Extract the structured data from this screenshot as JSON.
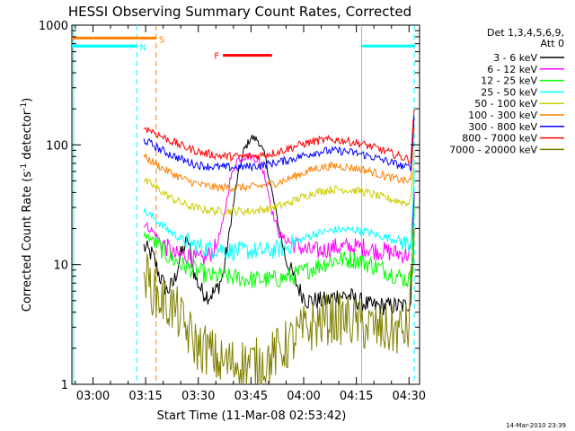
{
  "chart_data": {
    "type": "line",
    "title": "HESSI Observing Summary Count Rates, Corrected",
    "xlabel": "Start Time (11-Mar-08 02:53:42)",
    "ylabel_main": "Corrected Count Rate (s",
    "ylabel_sup1": "-1",
    "ylabel_mid": " detector",
    "ylabel_sup2": "-1",
    "ylabel_end": ")",
    "yscale": "log",
    "ylim": [
      1,
      1000
    ],
    "xlim_minutes": [
      174,
      273
    ],
    "x_ticks": [
      {
        "minute": 180,
        "label": "03:00"
      },
      {
        "minute": 195,
        "label": "03:15"
      },
      {
        "minute": 210,
        "label": "03:30"
      },
      {
        "minute": 225,
        "label": "03:45"
      },
      {
        "minute": 240,
        "label": "04:00"
      },
      {
        "minute": 255,
        "label": "04:15"
      },
      {
        "minute": 270,
        "label": "04:30"
      }
    ],
    "y_ticks": [
      {
        "value": 1,
        "label": "1"
      },
      {
        "value": 10,
        "label": "10"
      },
      {
        "value": 100,
        "label": "100"
      },
      {
        "value": 1000,
        "label": "1000"
      }
    ],
    "legend_header": [
      "Det 1,3,4,5,6,9,",
      "Att 0"
    ],
    "legend_position": "right",
    "series": [
      {
        "name": "3 - 6 keV",
        "color": "#000000",
        "x": [
          194.5,
          197,
          199,
          201,
          203,
          205,
          207,
          209,
          211,
          213,
          215,
          217,
          219,
          221,
          223,
          225,
          227,
          229,
          231,
          233,
          235,
          237,
          239,
          241,
          243,
          245,
          247,
          249,
          251,
          253,
          255,
          257,
          259,
          261,
          263,
          265,
          267,
          269,
          270.5,
          271.5
        ],
        "y": [
          14,
          12,
          8,
          6,
          7,
          12,
          16,
          8,
          6,
          5.5,
          6,
          8,
          20,
          50,
          90,
          115,
          110,
          80,
          40,
          20,
          11,
          8,
          6,
          5,
          5,
          5,
          5,
          5.5,
          5.5,
          5.5,
          5,
          4.8,
          4.5,
          4.5,
          4.5,
          4.5,
          4.5,
          4.5,
          5,
          40
        ]
      },
      {
        "name": "6 - 12 keV",
        "color": "#ff00ff",
        "x": [
          194.5,
          197,
          199,
          201,
          203,
          205,
          207,
          209,
          211,
          213,
          215,
          217,
          219,
          221,
          223,
          225,
          227,
          229,
          231,
          233,
          235,
          237,
          239,
          241,
          243,
          245,
          247,
          249,
          251,
          253,
          255,
          257,
          259,
          261,
          263,
          265,
          267,
          269,
          270.5,
          271.5
        ],
        "y": [
          22,
          19,
          16,
          14,
          12,
          12,
          12,
          11,
          11,
          12,
          14,
          22,
          50,
          75,
          80,
          80,
          75,
          55,
          28,
          18,
          16,
          15,
          14,
          13,
          13,
          13,
          13.5,
          14,
          14,
          14,
          14,
          14,
          13.5,
          13,
          13,
          12.5,
          12.5,
          12,
          12.5,
          40
        ]
      },
      {
        "name": "12 - 25 keV",
        "color": "#00ff00",
        "x": [
          194.5,
          197,
          199,
          201,
          203,
          205,
          207,
          209,
          211,
          213,
          215,
          217,
          219,
          221,
          223,
          225,
          227,
          229,
          231,
          233,
          235,
          237,
          239,
          241,
          243,
          245,
          247,
          249,
          251,
          253,
          255,
          257,
          259,
          261,
          263,
          265,
          267,
          269,
          270.5,
          271.5
        ],
        "y": [
          18,
          16,
          14,
          12,
          11,
          10,
          9.5,
          9,
          8.5,
          8,
          8,
          8,
          7.8,
          7.8,
          7.6,
          7.5,
          7.5,
          7.5,
          7.5,
          7.6,
          7.8,
          8,
          8.5,
          9,
          9.5,
          10,
          10.5,
          11,
          11,
          11,
          11,
          10.5,
          10,
          9.5,
          9,
          8.5,
          8,
          7.5,
          7.5,
          30
        ]
      },
      {
        "name": "25 - 50 keV",
        "color": "#00ffff",
        "x": [
          194.5,
          197,
          199,
          201,
          203,
          205,
          207,
          209,
          211,
          213,
          215,
          217,
          219,
          221,
          223,
          225,
          227,
          229,
          231,
          233,
          235,
          237,
          239,
          241,
          243,
          245,
          247,
          249,
          251,
          253,
          255,
          257,
          259,
          261,
          263,
          265,
          267,
          269,
          270.5,
          271.5
        ],
        "y": [
          28,
          25,
          22,
          20,
          18,
          16.5,
          15.5,
          14.5,
          14,
          13.5,
          13.5,
          13.5,
          13,
          13,
          13,
          13,
          13,
          13,
          13.2,
          13.5,
          14,
          15,
          16,
          17,
          18,
          18.5,
          19,
          19.5,
          19.5,
          19.5,
          19.5,
          19,
          18.5,
          17.5,
          17,
          16.5,
          16,
          15,
          15,
          60
        ]
      },
      {
        "name": "50 - 100 keV",
        "color": "#cccc00",
        "x": [
          194.5,
          197,
          199,
          201,
          203,
          205,
          207,
          209,
          211,
          213,
          215,
          217,
          219,
          221,
          223,
          225,
          227,
          229,
          231,
          233,
          235,
          237,
          239,
          241,
          243,
          245,
          247,
          249,
          251,
          253,
          255,
          257,
          259,
          261,
          263,
          265,
          267,
          269,
          270.5,
          271.5
        ],
        "y": [
          50,
          46,
          42,
          38,
          35,
          33,
          31,
          30,
          29,
          28.5,
          28,
          28,
          28,
          28,
          28,
          28,
          28.5,
          29,
          30,
          31,
          32,
          34,
          36,
          38,
          40,
          41,
          42,
          42.5,
          42.5,
          42,
          41.5,
          40.5,
          39,
          37.5,
          36,
          35,
          34,
          33,
          33,
          90
        ]
      },
      {
        "name": "100 - 300 keV",
        "color": "#ff8000",
        "x": [
          194.5,
          197,
          199,
          201,
          203,
          205,
          207,
          209,
          211,
          213,
          215,
          217,
          219,
          221,
          223,
          225,
          227,
          229,
          231,
          233,
          235,
          237,
          239,
          241,
          243,
          245,
          247,
          249,
          251,
          253,
          255,
          257,
          259,
          261,
          263,
          265,
          267,
          269,
          270.5,
          271.5
        ],
        "y": [
          80,
          72,
          66,
          61,
          57,
          53,
          50,
          48,
          46,
          45,
          44,
          44,
          44,
          44,
          44,
          44.5,
          45,
          46,
          47.5,
          49,
          51,
          54,
          57,
          60,
          63,
          65,
          66,
          66.5,
          66,
          65,
          63.5,
          62,
          60,
          57.5,
          55,
          53,
          51.5,
          50,
          50,
          140
        ]
      },
      {
        "name": "300 - 800 keV",
        "color": "#0000ff",
        "x": [
          194.5,
          197,
          199,
          201,
          203,
          205,
          207,
          209,
          211,
          213,
          215,
          217,
          219,
          221,
          223,
          225,
          227,
          229,
          231,
          233,
          235,
          237,
          239,
          241,
          243,
          245,
          247,
          249,
          251,
          253,
          255,
          257,
          259,
          261,
          263,
          265,
          267,
          269,
          270.5,
          271.5
        ],
        "y": [
          110,
          100,
          92,
          86,
          81,
          76,
          72,
          69,
          67,
          66,
          65.5,
          65,
          65,
          65,
          65.5,
          66,
          67,
          68,
          70,
          72,
          74,
          77,
          80,
          83,
          86,
          88,
          89,
          89,
          88.5,
          87,
          85,
          83,
          80,
          77,
          74,
          71,
          68,
          65,
          65,
          170
        ]
      },
      {
        "name": "800 - 7000 keV",
        "color": "#ff0000",
        "x": [
          194.5,
          197,
          199,
          201,
          203,
          205,
          207,
          209,
          211,
          213,
          215,
          217,
          219,
          221,
          223,
          225,
          227,
          229,
          231,
          233,
          235,
          237,
          239,
          241,
          243,
          245,
          247,
          249,
          251,
          253,
          255,
          257,
          259,
          261,
          263,
          265,
          267,
          269,
          270.5,
          271.5
        ],
        "y": [
          140,
          130,
          120,
          112,
          105,
          99,
          94,
          90,
          86,
          84,
          82,
          80.5,
          80,
          80,
          80,
          80.5,
          81,
          83,
          85,
          88,
          92,
          96,
          100,
          104,
          107,
          109,
          110,
          110,
          109,
          107,
          104,
          101,
          97,
          93,
          89,
          85,
          81,
          77,
          75,
          200
        ]
      },
      {
        "name": "7000 - 20000 keV",
        "color": "#808000",
        "x": [
          194.5,
          196,
          198,
          200,
          202,
          204,
          206,
          208,
          210,
          212,
          214,
          216,
          218,
          220,
          222,
          224,
          226,
          228,
          230,
          232,
          234,
          236,
          238,
          240,
          242,
          244,
          246,
          248,
          250,
          252,
          254,
          256,
          258,
          260,
          262,
          264,
          266,
          268,
          270,
          271.5
        ],
        "y": [
          9,
          7,
          5.5,
          5,
          4.5,
          4,
          3,
          2.5,
          2,
          2,
          1.8,
          1.5,
          1.5,
          1.5,
          1.5,
          1.5,
          1.5,
          1.5,
          1.6,
          1.8,
          2,
          2.2,
          2.5,
          2.8,
          3,
          3.2,
          3.5,
          3.5,
          3.5,
          3.5,
          3.3,
          3.2,
          3,
          3,
          2.8,
          2.8,
          2.8,
          2.8,
          3,
          20
        ]
      }
    ],
    "annotations": [
      {
        "label": "S",
        "color": "#ff8000",
        "type": "vline",
        "x_minute": 198,
        "bar_from": 174,
        "bar_to": 198,
        "value": 780
      },
      {
        "label": "N",
        "color": "#00ffff",
        "type": "vline",
        "x_minute": 192.5,
        "bar_from": 174,
        "bar_to": 192.5,
        "value": 670
      },
      {
        "label": "F",
        "color": "#ff0000",
        "type": "bar",
        "bar_from": 217,
        "bar_to": 231,
        "value": 560
      }
    ],
    "night_intervals": [
      {
        "color": "#00ffff",
        "from_minute": 174.5,
        "to_minute": 192.5,
        "value": 670
      },
      {
        "color": "#00ffff",
        "from_minute": 256.5,
        "to_minute": 271.5,
        "value": 670
      }
    ],
    "solid_vlines": [
      {
        "color": "#00ffff",
        "x_minute": 174.5
      },
      {
        "color": "#00ffff",
        "x_minute": 256.5
      }
    ],
    "dashed_vlines": [
      {
        "color": "#00ffff",
        "x_minute": 192.5
      },
      {
        "color": "#ff8000",
        "x_minute": 198
      },
      {
        "color": "#00ffff",
        "x_minute": 271.5
      }
    ]
  },
  "footer_timestamp": "14-Mar-2010 23:39"
}
